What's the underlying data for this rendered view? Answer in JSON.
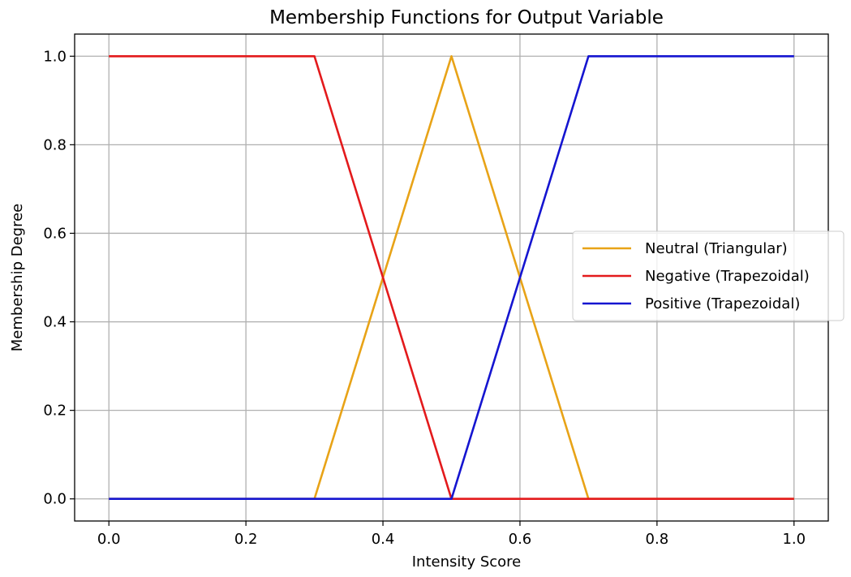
{
  "chart_data": {
    "type": "line",
    "title": "Membership Functions for Output Variable",
    "xlabel": "Intensity Score",
    "ylabel": "Membership Degree",
    "xlim": [
      -0.05,
      1.05
    ],
    "ylim": [
      -0.05,
      1.05
    ],
    "xticks": [
      0.0,
      0.2,
      0.4,
      0.6,
      0.8,
      1.0
    ],
    "xtick_labels": [
      "0.0",
      "0.2",
      "0.4",
      "0.6",
      "0.8",
      "1.0"
    ],
    "yticks": [
      0.0,
      0.2,
      0.4,
      0.6,
      0.8,
      1.0
    ],
    "ytick_labels": [
      "0.0",
      "0.2",
      "0.4",
      "0.6",
      "0.8",
      "1.0"
    ],
    "grid": true,
    "legend_position": "center-right",
    "series": [
      {
        "name": "Neutral (Triangular)",
        "color": "#e8a317",
        "x": [
          0.0,
          0.3,
          0.5,
          0.7,
          1.0
        ],
        "y": [
          0.0,
          0.0,
          1.0,
          0.0,
          0.0
        ]
      },
      {
        "name": "Negative (Trapezoidal)",
        "color": "#e31a1c",
        "x": [
          0.0,
          0.3,
          0.5,
          1.0
        ],
        "y": [
          1.0,
          1.0,
          0.0,
          0.0
        ]
      },
      {
        "name": "Positive (Trapezoidal)",
        "color": "#1515d0",
        "x": [
          0.0,
          0.5,
          0.7,
          1.0
        ],
        "y": [
          0.0,
          0.0,
          1.0,
          1.0
        ]
      }
    ]
  }
}
